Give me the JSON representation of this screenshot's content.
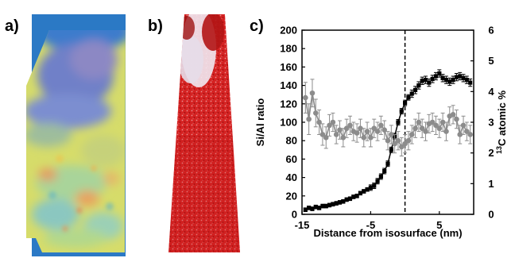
{
  "panels": {
    "a": "a)",
    "b": "b)",
    "c": "c)"
  },
  "colors": {
    "si_al_series": "#000000",
    "c13_series": "#8c8c8c",
    "isosurface_line": "#000000",
    "panel_a_background": "#2b79c5",
    "panel_b_atoms": "#cc1f1f"
  },
  "chart_data": {
    "type": "line",
    "xlabel": "Distance from isosurface (nm)",
    "ylabel_left": "Si/Al ratio",
    "ylabel_right_sup": "13",
    "ylabel_right_main": "C atomic %",
    "xlim": [
      -15,
      10
    ],
    "ylim_left": [
      0,
      200
    ],
    "ylim_right": [
      0,
      6
    ],
    "x_ticks": [
      -15,
      -5,
      5
    ],
    "y_left_ticks": [
      0,
      20,
      40,
      60,
      80,
      100,
      120,
      140,
      160,
      180,
      200
    ],
    "y_right_ticks": [
      0,
      1,
      2,
      3,
      4,
      5,
      6
    ],
    "isosurface_x": 0,
    "grid": false,
    "series": [
      {
        "axis": "left",
        "marker": "square",
        "x": [
          -14.5,
          -14,
          -13.5,
          -13,
          -12.5,
          -12,
          -11.5,
          -11,
          -10.5,
          -10,
          -9.5,
          -9,
          -8.5,
          -8,
          -7.5,
          -7,
          -6.5,
          -6,
          -5.5,
          -5,
          -4.5,
          -4,
          -3.5,
          -3,
          -2.5,
          -2,
          -1.5,
          -1,
          -0.5,
          0,
          0.5,
          1,
          1.5,
          2,
          2.5,
          3,
          3.5,
          4,
          4.5,
          5,
          5.5,
          6,
          6.5,
          7,
          7.5,
          8,
          8.5,
          9,
          9.5
        ],
        "values": [
          5,
          7,
          6,
          8,
          7,
          9,
          9,
          10,
          11,
          12,
          13,
          14,
          16,
          17,
          19,
          20,
          23,
          25,
          27,
          29,
          31,
          36,
          41,
          47,
          55,
          70,
          85,
          100,
          112,
          121,
          127,
          131,
          135,
          140,
          145,
          146,
          143,
          147,
          150,
          153,
          148,
          146,
          144,
          146,
          149,
          150,
          148,
          146,
          143
        ],
        "errors": [
          2,
          2,
          2,
          2,
          2,
          2,
          2,
          2,
          2,
          2,
          2,
          2,
          2,
          2,
          2,
          2,
          2,
          2,
          2,
          3,
          3,
          3,
          3,
          3,
          3,
          3,
          3,
          3,
          3,
          3,
          3,
          4,
          4,
          4,
          4,
          4,
          4,
          4,
          4,
          4,
          4,
          4,
          4,
          4,
          4,
          4,
          4,
          4,
          4
        ]
      },
      {
        "axis": "right",
        "marker": "circle",
        "x": [
          -14.5,
          -14,
          -13.5,
          -13,
          -12.5,
          -12,
          -11.5,
          -11,
          -10.5,
          -10,
          -9.5,
          -9,
          -8.5,
          -8,
          -7.5,
          -7,
          -6.5,
          -6,
          -5.5,
          -5,
          -4.5,
          -4,
          -3.5,
          -3,
          -2.5,
          -2,
          -1.5,
          -1,
          -0.5,
          0,
          0.5,
          1,
          1.5,
          2,
          2.5,
          3,
          3.5,
          4,
          4.5,
          5,
          5.5,
          6,
          6.5,
          7,
          7.5,
          8,
          8.5,
          9,
          9.5
        ],
        "values": [
          3.8,
          3.1,
          3.95,
          3.3,
          3.0,
          2.6,
          2.5,
          2.9,
          3.0,
          2.6,
          2.75,
          2.5,
          2.8,
          2.9,
          2.7,
          2.65,
          2.8,
          2.5,
          2.7,
          2.5,
          2.8,
          2.7,
          2.9,
          2.75,
          2.4,
          2.6,
          2.3,
          2.4,
          2.2,
          2.3,
          2.4,
          2.6,
          2.8,
          3.0,
          2.8,
          2.7,
          2.95,
          3.0,
          2.9,
          2.8,
          3.0,
          2.7,
          3.2,
          3.25,
          3.1,
          2.6,
          2.9,
          2.7,
          2.6
        ],
        "errors": [
          0.5,
          0.5,
          0.45,
          0.45,
          0.4,
          0.35,
          0.35,
          0.35,
          0.3,
          0.3,
          0.3,
          0.3,
          0.3,
          0.3,
          0.3,
          0.3,
          0.3,
          0.3,
          0.3,
          0.3,
          0.3,
          0.3,
          0.3,
          0.3,
          0.3,
          0.3,
          0.3,
          0.3,
          0.3,
          0.3,
          0.3,
          0.3,
          0.3,
          0.3,
          0.3,
          0.3,
          0.3,
          0.3,
          0.3,
          0.3,
          0.3,
          0.3,
          0.3,
          0.3,
          0.3,
          0.3,
          0.3,
          0.3,
          0.3
        ]
      }
    ]
  }
}
